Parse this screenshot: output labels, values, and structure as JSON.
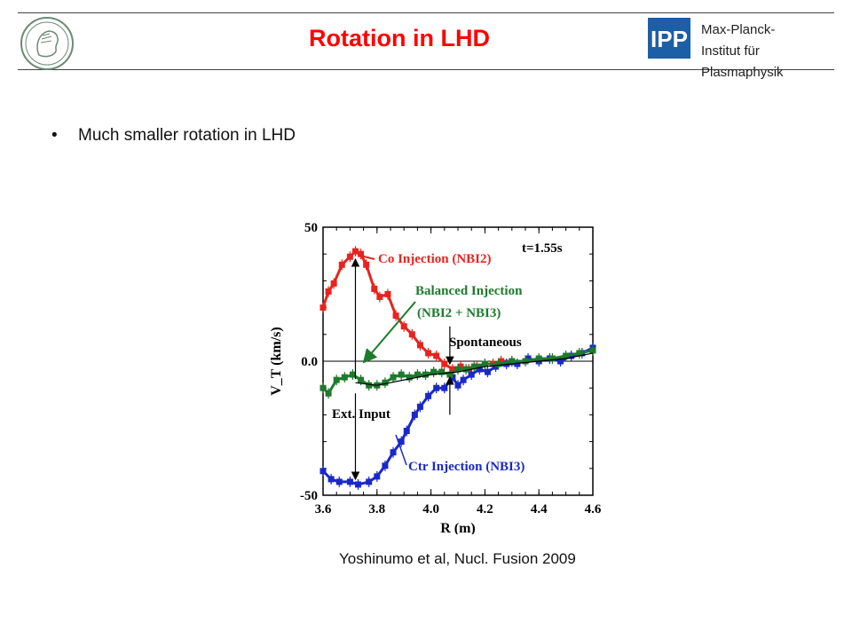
{
  "header": {
    "title": "Rotation in LHD",
    "institute_lines": [
      "Max-Planck-",
      "Institut für",
      "Plasmaphysik"
    ],
    "ipp_logo_text": "IPP",
    "accent_color": "#ff0000",
    "ipp_blue": "#1d5fa6"
  },
  "body": {
    "bullets": [
      "Much smaller rotation in LHD"
    ],
    "caption": "Yoshinumo et al, Nucl. Fusion 2009"
  },
  "chart_data": {
    "type": "line",
    "xlabel": "R (m)",
    "ylabel": "V_T (km/s)",
    "xlim": [
      3.6,
      4.6
    ],
    "ylim": [
      -50,
      50
    ],
    "xticks": [
      "3.6",
      "3.8",
      "4.0",
      "4.2",
      "4.4",
      "4.6"
    ],
    "yticks": [
      "50",
      "0.0",
      "-50"
    ],
    "time_label": "t=1.55s",
    "grid": false,
    "series": [
      {
        "name": "Co Injection (NBI2)",
        "color": "#e8231f",
        "x": [
          3.6,
          3.62,
          3.64,
          3.67,
          3.7,
          3.72,
          3.74,
          3.76,
          3.79,
          3.81,
          3.84,
          3.87,
          3.9,
          3.93,
          3.96,
          3.99,
          4.02,
          4.05,
          4.08,
          4.11,
          4.14,
          4.17,
          4.2,
          4.23,
          4.26,
          4.3
        ],
        "y": [
          20,
          26,
          29,
          36,
          39,
          41,
          40,
          36,
          27,
          24,
          25,
          17,
          13,
          10,
          6,
          3,
          2,
          -1,
          -3,
          -2,
          -3,
          -2,
          -1,
          -1,
          0,
          0
        ]
      },
      {
        "name": "Ctr Injection (NBI3)",
        "color": "#1a28c8",
        "x": [
          3.6,
          3.63,
          3.66,
          3.7,
          3.73,
          3.77,
          3.8,
          3.83,
          3.86,
          3.89,
          3.91,
          3.94,
          3.96,
          3.99,
          4.02,
          4.05,
          4.08,
          4.1,
          4.12,
          4.15,
          4.18,
          4.21,
          4.24,
          4.28,
          4.32,
          4.36,
          4.4,
          4.44,
          4.48,
          4.52,
          4.56,
          4.6
        ],
        "y": [
          -41,
          -44,
          -45,
          -45,
          -46,
          -45,
          -43,
          -39,
          -34,
          -30,
          -26,
          -20,
          -17,
          -13,
          -10,
          -10,
          -6,
          -9,
          -7,
          -5,
          -3,
          -4,
          -2,
          -1,
          -1,
          1,
          0,
          1,
          0,
          2,
          3,
          5
        ]
      },
      {
        "name": "Balanced Injection (NBI2 + NBI3)",
        "color": "#1e7a2c",
        "x": [
          3.6,
          3.62,
          3.65,
          3.68,
          3.71,
          3.74,
          3.77,
          3.8,
          3.83,
          3.86,
          3.89,
          3.92,
          3.95,
          3.98,
          4.01,
          4.04,
          4.07,
          4.1,
          4.13,
          4.16,
          4.2,
          4.25,
          4.3,
          4.35,
          4.4,
          4.45,
          4.5,
          4.55,
          4.6
        ],
        "y": [
          -10,
          -12,
          -7,
          -6,
          -5,
          -7,
          -9,
          -9,
          -8,
          -6,
          -5,
          -6,
          -5,
          -5,
          -4,
          -4,
          -5,
          -3,
          -3,
          -2,
          -1,
          -1,
          0,
          0,
          1,
          1,
          2,
          3,
          4
        ]
      },
      {
        "name": "Spontaneous",
        "color": "#000000",
        "x": [
          3.72,
          3.8,
          3.9,
          4.0,
          4.1,
          4.2,
          4.3,
          4.4,
          4.5,
          4.6
        ],
        "y": [
          -8,
          -9,
          -7,
          -5,
          -4,
          -2,
          -1,
          0,
          1,
          3
        ]
      }
    ],
    "annotations": {
      "ext_input": "Ext. Input",
      "spontaneous_label": "Spontaneous",
      "co_label": "Co Injection (NBI2)",
      "balanced_label_1": "Balanced Injection",
      "balanced_label_2": "(NBI2 + NBI3)",
      "ctr_label": "Ctr Injection (NBI3)"
    }
  }
}
